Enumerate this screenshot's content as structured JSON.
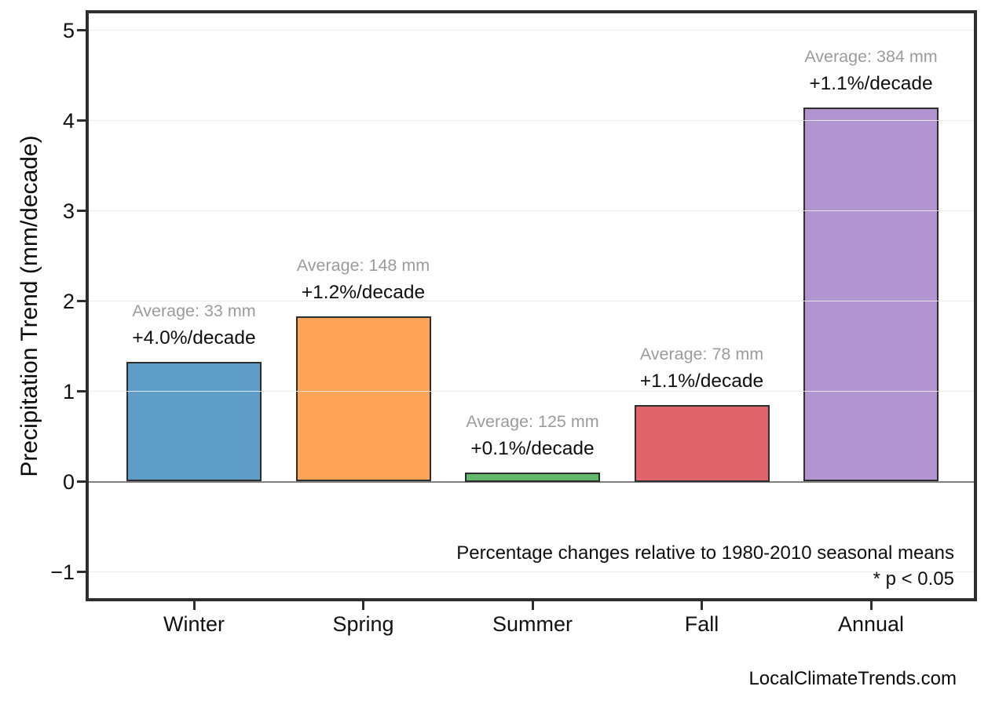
{
  "watermark": "LocalClimateTrends.com",
  "footnote": {
    "line1": "Percentage changes relative to 1980-2010 seasonal means",
    "line2": "* p < 0.05"
  },
  "chart_data": {
    "type": "bar",
    "title": "",
    "xlabel": "",
    "ylabel": "Precipitation Trend (mm/decade)",
    "categories": [
      "Winter",
      "Spring",
      "Summer",
      "Fall",
      "Annual"
    ],
    "values": [
      1.33,
      1.83,
      0.1,
      0.85,
      4.14
    ],
    "averages_mm": [
      33,
      148,
      125,
      78,
      384
    ],
    "annotations": [
      {
        "average": "Average: 33 mm",
        "trend": "+4.0%/decade"
      },
      {
        "average": "Average: 148 mm",
        "trend": "+1.2%/decade"
      },
      {
        "average": "Average: 125 mm",
        "trend": "+0.1%/decade"
      },
      {
        "average": "Average: 78 mm",
        "trend": "+1.1%/decade"
      },
      {
        "average": "Average: 384 mm",
        "trend": "+1.1%/decade"
      }
    ],
    "bar_colors": [
      "#5E9DC8",
      "#FFA457",
      "#62B96B",
      "#E0656A",
      "#B294D0"
    ],
    "bar_edge_color": "#2d2d2d",
    "yticks": [
      -1,
      0,
      1,
      2,
      3,
      4,
      5
    ],
    "ytick_labels": [
      "−1",
      "0",
      "1",
      "2",
      "3",
      "4",
      "5"
    ],
    "ylim": [
      -1.29,
      5.18
    ],
    "grid": true,
    "legend": "none",
    "zero_line_color": "#808080",
    "notes": [
      "Percentage changes relative to 1980-2010 seasonal means",
      "* p < 0.05"
    ]
  }
}
